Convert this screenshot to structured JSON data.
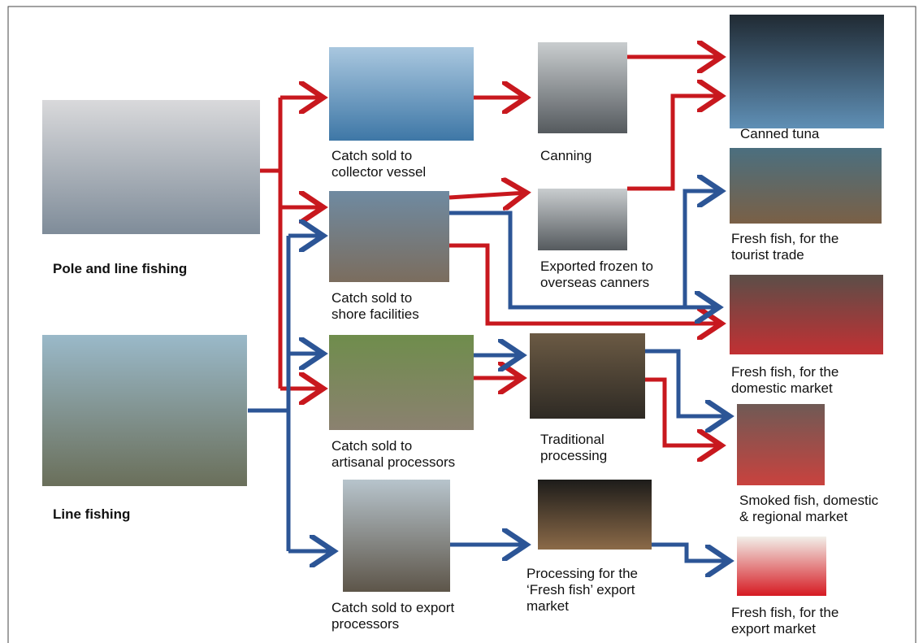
{
  "nodes": [
    {
      "label": [
        "Pole and line fishing"
      ]
    },
    {
      "label": [
        "Line fishing"
      ]
    },
    {
      "label": [
        "Catch sold to",
        "collector vessel"
      ]
    },
    {
      "label": [
        "Catch sold to",
        "shore facilities"
      ]
    },
    {
      "label": [
        "Catch sold to",
        "artisanal processors"
      ]
    },
    {
      "label": [
        "Catch sold to export",
        "processors"
      ]
    },
    {
      "label": [
        "Canning"
      ]
    },
    {
      "label": [
        "Exported frozen to",
        "overseas canners"
      ]
    },
    {
      "label": [
        "Traditional",
        "processing"
      ]
    },
    {
      "label": [
        "Processing for the",
        "‘Fresh fish’ export",
        "market"
      ]
    },
    {
      "label": [
        "Canned tuna"
      ]
    },
    {
      "label": [
        "Fresh fish, for the",
        "tourist trade"
      ]
    },
    {
      "label": [
        "Fresh fish, for the",
        "domestic market"
      ]
    },
    {
      "label": [
        "Smoked fish, domestic",
        "& regional market"
      ]
    },
    {
      "label": [
        "Fresh fish, for the",
        "export market"
      ]
    }
  ]
}
